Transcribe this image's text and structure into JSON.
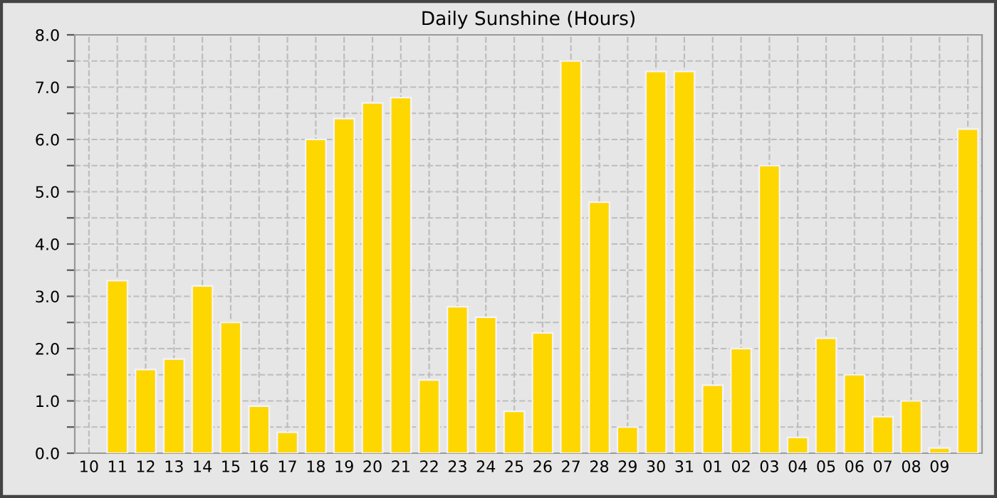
{
  "chart_data": {
    "type": "bar",
    "title": "Daily Sunshine (Hours)",
    "categories": [
      "10",
      "11",
      "12",
      "13",
      "14",
      "15",
      "16",
      "17",
      "18",
      "19",
      "20",
      "21",
      "22",
      "23",
      "24",
      "25",
      "26",
      "27",
      "28",
      "29",
      "30",
      "31",
      "01",
      "02",
      "03",
      "04",
      "05",
      "06",
      "07",
      "08",
      "09",
      null
    ],
    "values": [
      null,
      3.3,
      1.6,
      1.8,
      3.2,
      2.5,
      0.9,
      0.4,
      6.0,
      6.4,
      6.7,
      6.8,
      1.4,
      2.8,
      2.6,
      0.8,
      2.3,
      7.5,
      4.8,
      0.5,
      7.3,
      7.3,
      1.3,
      2.0,
      5.5,
      0.3,
      2.2,
      1.5,
      0.7,
      1.0,
      0.1,
      6.2
    ],
    "color": "#ffd700",
    "ylim": [
      0,
      8
    ],
    "yticks": [
      {
        "value": 0,
        "label": "0.0"
      },
      {
        "value": 0.5,
        "label": null
      },
      {
        "value": 1,
        "label": "1.0"
      },
      {
        "value": 1.5,
        "label": null
      },
      {
        "value": 2,
        "label": "2.0"
      },
      {
        "value": 2.5,
        "label": null
      },
      {
        "value": 3,
        "label": "3.0"
      },
      {
        "value": 3.5,
        "label": null
      },
      {
        "value": 4,
        "label": "4.0"
      },
      {
        "value": 4.5,
        "label": null
      },
      {
        "value": 5,
        "label": "5.0"
      },
      {
        "value": 5.5,
        "label": null
      },
      {
        "value": 6,
        "label": "6.0"
      },
      {
        "value": 6.5,
        "label": null
      },
      {
        "value": 7,
        "label": "7.0"
      },
      {
        "value": 7.5,
        "label": null
      },
      {
        "value": 8,
        "label": "8.0"
      }
    ],
    "grid": true
  }
}
